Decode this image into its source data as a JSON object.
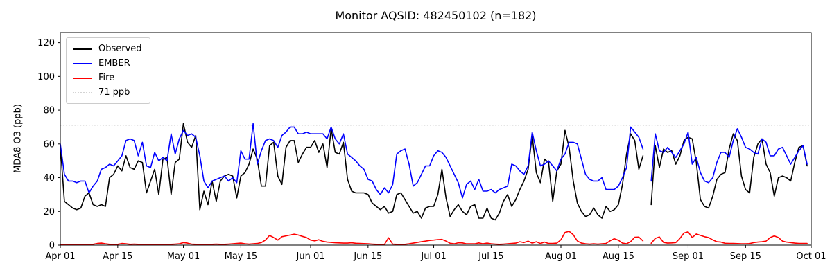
{
  "figure": {
    "title": "Monitor AQSID: 482450102 (n=182)",
    "background": "#ffffff"
  },
  "chart_data": {
    "type": "line",
    "title": "Monitor AQSID: 482450102 (n=182)",
    "xlabel": "",
    "ylabel": "MDA8 O3 (ppb)",
    "n_points": 182,
    "grid": false,
    "legend_position": "upper left",
    "ylim": [
      0,
      126
    ],
    "yticks": [
      0,
      20,
      40,
      60,
      80,
      100,
      120
    ],
    "x_span_days": 183,
    "x_note": "daily values, day 0 = Apr 01, last data day 182 = Sep 30, axis extends to Oct 01; null = missing day (Aug 22)",
    "xticks": [
      {
        "d": 0,
        "label": "Apr 01"
      },
      {
        "d": 14,
        "label": "Apr 15"
      },
      {
        "d": 30,
        "label": "May 01"
      },
      {
        "d": 44,
        "label": "May 15"
      },
      {
        "d": 61,
        "label": "Jun 01"
      },
      {
        "d": 75,
        "label": "Jun 15"
      },
      {
        "d": 91,
        "label": "Jul 01"
      },
      {
        "d": 105,
        "label": "Jul 15"
      },
      {
        "d": 122,
        "label": "Aug 01"
      },
      {
        "d": 136,
        "label": "Aug 15"
      },
      {
        "d": 153,
        "label": "Sep 01"
      },
      {
        "d": 167,
        "label": "Sep 15"
      },
      {
        "d": 183,
        "label": "Oct 01"
      }
    ],
    "threshold": {
      "value": 71,
      "label": "71 ppb",
      "color": "#d3d3d3",
      "style": "dotted"
    },
    "series": [
      {
        "name": "Observed",
        "color": "#000000",
        "values": [
          59,
          26,
          24,
          22,
          21,
          22,
          29,
          31,
          24,
          23,
          24,
          23,
          40,
          42,
          47,
          44,
          53,
          46,
          45,
          50,
          49,
          31,
          38,
          45,
          30,
          51,
          52,
          30,
          49,
          51,
          72,
          61,
          58,
          65,
          21,
          32,
          24,
          38,
          26,
          38,
          41,
          42,
          41,
          28,
          41,
          43,
          48,
          57,
          51,
          35,
          35,
          59,
          61,
          41,
          36,
          58,
          62,
          62,
          49,
          54,
          58,
          58,
          62,
          55,
          60,
          46,
          69,
          55,
          54,
          61,
          39,
          32,
          31,
          31,
          31,
          30,
          25,
          23,
          21,
          23,
          19,
          20,
          30,
          31,
          27,
          23,
          19,
          20,
          16,
          22,
          23,
          23,
          30,
          45,
          28,
          17,
          21,
          24,
          20,
          18,
          23,
          24,
          16,
          16,
          22,
          16,
          15,
          19,
          26,
          30,
          23,
          27,
          33,
          38,
          45,
          65,
          43,
          37,
          51,
          49,
          26,
          44,
          48,
          68,
          58,
          38,
          25,
          20,
          17,
          18,
          22,
          18,
          16,
          23,
          20,
          21,
          24,
          36,
          54,
          66,
          62,
          45,
          53,
          null,
          24,
          59,
          46,
          57,
          55,
          56,
          48,
          53,
          62,
          64,
          63,
          49,
          27,
          23,
          22,
          29,
          39,
          42,
          43,
          57,
          66,
          62,
          41,
          33,
          31,
          52,
          60,
          63,
          48,
          43,
          29,
          40,
          41,
          40,
          38,
          49,
          58,
          59,
          47
        ]
      },
      {
        "name": "EMBER",
        "color": "#0000ff",
        "values": [
          60,
          42,
          38,
          38,
          37,
          38,
          38,
          31,
          35,
          38,
          45,
          46,
          48,
          47,
          50,
          53,
          62,
          63,
          62,
          53,
          61,
          47,
          46,
          55,
          50,
          52,
          50,
          66,
          54,
          63,
          68,
          65,
          66,
          64,
          53,
          38,
          34,
          38,
          39,
          40,
          41,
          38,
          40,
          37,
          56,
          51,
          51,
          72,
          48,
          56,
          62,
          63,
          62,
          58,
          65,
          67,
          70,
          70,
          66,
          66,
          67,
          66,
          66,
          66,
          66,
          63,
          70,
          63,
          60,
          66,
          54,
          52,
          50,
          47,
          45,
          39,
          38,
          33,
          30,
          34,
          31,
          36,
          54,
          56,
          57,
          48,
          35,
          37,
          42,
          47,
          47,
          53,
          56,
          55,
          52,
          47,
          42,
          37,
          28,
          36,
          38,
          33,
          39,
          32,
          32,
          33,
          31,
          33,
          34,
          35,
          48,
          47,
          44,
          42,
          47,
          67,
          56,
          47,
          48,
          50,
          47,
          44,
          51,
          54,
          61,
          61,
          60,
          51,
          42,
          39,
          38,
          38,
          40,
          33,
          33,
          33,
          35,
          40,
          46,
          70,
          67,
          64,
          57,
          null,
          38,
          66,
          56,
          55,
          58,
          55,
          52,
          56,
          60,
          67,
          48,
          52,
          43,
          38,
          37,
          40,
          49,
          55,
          55,
          52,
          62,
          69,
          64,
          58,
          57,
          55,
          54,
          63,
          61,
          53,
          53,
          57,
          58,
          53,
          48,
          52,
          56,
          59,
          48
        ]
      },
      {
        "name": "Fire",
        "color": "#ff0000",
        "values": [
          0.3,
          0.3,
          0.3,
          0.3,
          0.3,
          0.3,
          0.3,
          0.4,
          0.5,
          1.0,
          1.2,
          0.8,
          0.5,
          0.4,
          0.5,
          1.0,
          0.8,
          0.5,
          0.6,
          0.5,
          0.4,
          0.4,
          0.3,
          0.3,
          0.3,
          0.4,
          0.4,
          0.5,
          0.6,
          0.8,
          1.5,
          1.2,
          0.6,
          0.5,
          0.4,
          0.4,
          0.5,
          0.5,
          0.6,
          0.5,
          0.5,
          0.6,
          0.8,
          1.0,
          1.2,
          0.8,
          0.6,
          0.8,
          1.0,
          1.5,
          3.0,
          5.8,
          4.5,
          3.0,
          5.0,
          5.5,
          6.0,
          6.5,
          6.0,
          5.2,
          4.5,
          3.0,
          2.5,
          3.2,
          2.2,
          1.8,
          1.6,
          1.4,
          1.3,
          1.2,
          1.2,
          1.4,
          1.1,
          1.0,
          0.9,
          0.8,
          0.6,
          0.5,
          0.5,
          0.4,
          4.4,
          0.6,
          0.5,
          0.5,
          0.5,
          0.8,
          1.2,
          1.6,
          2.0,
          2.4,
          2.8,
          3.0,
          3.3,
          3.4,
          2.4,
          1.1,
          0.8,
          1.4,
          1.3,
          0.8,
          0.8,
          0.8,
          1.3,
          0.8,
          1.2,
          0.8,
          0.6,
          0.5,
          0.6,
          0.8,
          1.0,
          1.2,
          2.0,
          1.5,
          2.4,
          1.2,
          2.0,
          1.0,
          1.8,
          1.0,
          1.0,
          1.2,
          3.2,
          7.5,
          8.2,
          6.2,
          2.5,
          1.2,
          0.8,
          0.6,
          0.8,
          0.6,
          0.8,
          1.0,
          2.6,
          3.8,
          2.9,
          1.2,
          0.8,
          2.1,
          4.7,
          4.8,
          2.5,
          null,
          1.1,
          4.0,
          4.9,
          1.6,
          1.2,
          1.3,
          1.5,
          4.0,
          7.2,
          7.9,
          4.5,
          6.6,
          5.8,
          5.0,
          4.5,
          3.1,
          2.0,
          1.8,
          1.1,
          1.0,
          1.0,
          0.9,
          0.8,
          0.8,
          0.9,
          1.5,
          1.8,
          2.0,
          2.4,
          4.5,
          5.5,
          4.5,
          2.4,
          1.8,
          1.5,
          1.2,
          1.0,
          1.0,
          1.0
        ]
      }
    ]
  },
  "legend": {
    "items": [
      {
        "label": "Observed"
      },
      {
        "label": "EMBER"
      },
      {
        "label": "Fire"
      },
      {
        "label": "71 ppb"
      }
    ]
  }
}
